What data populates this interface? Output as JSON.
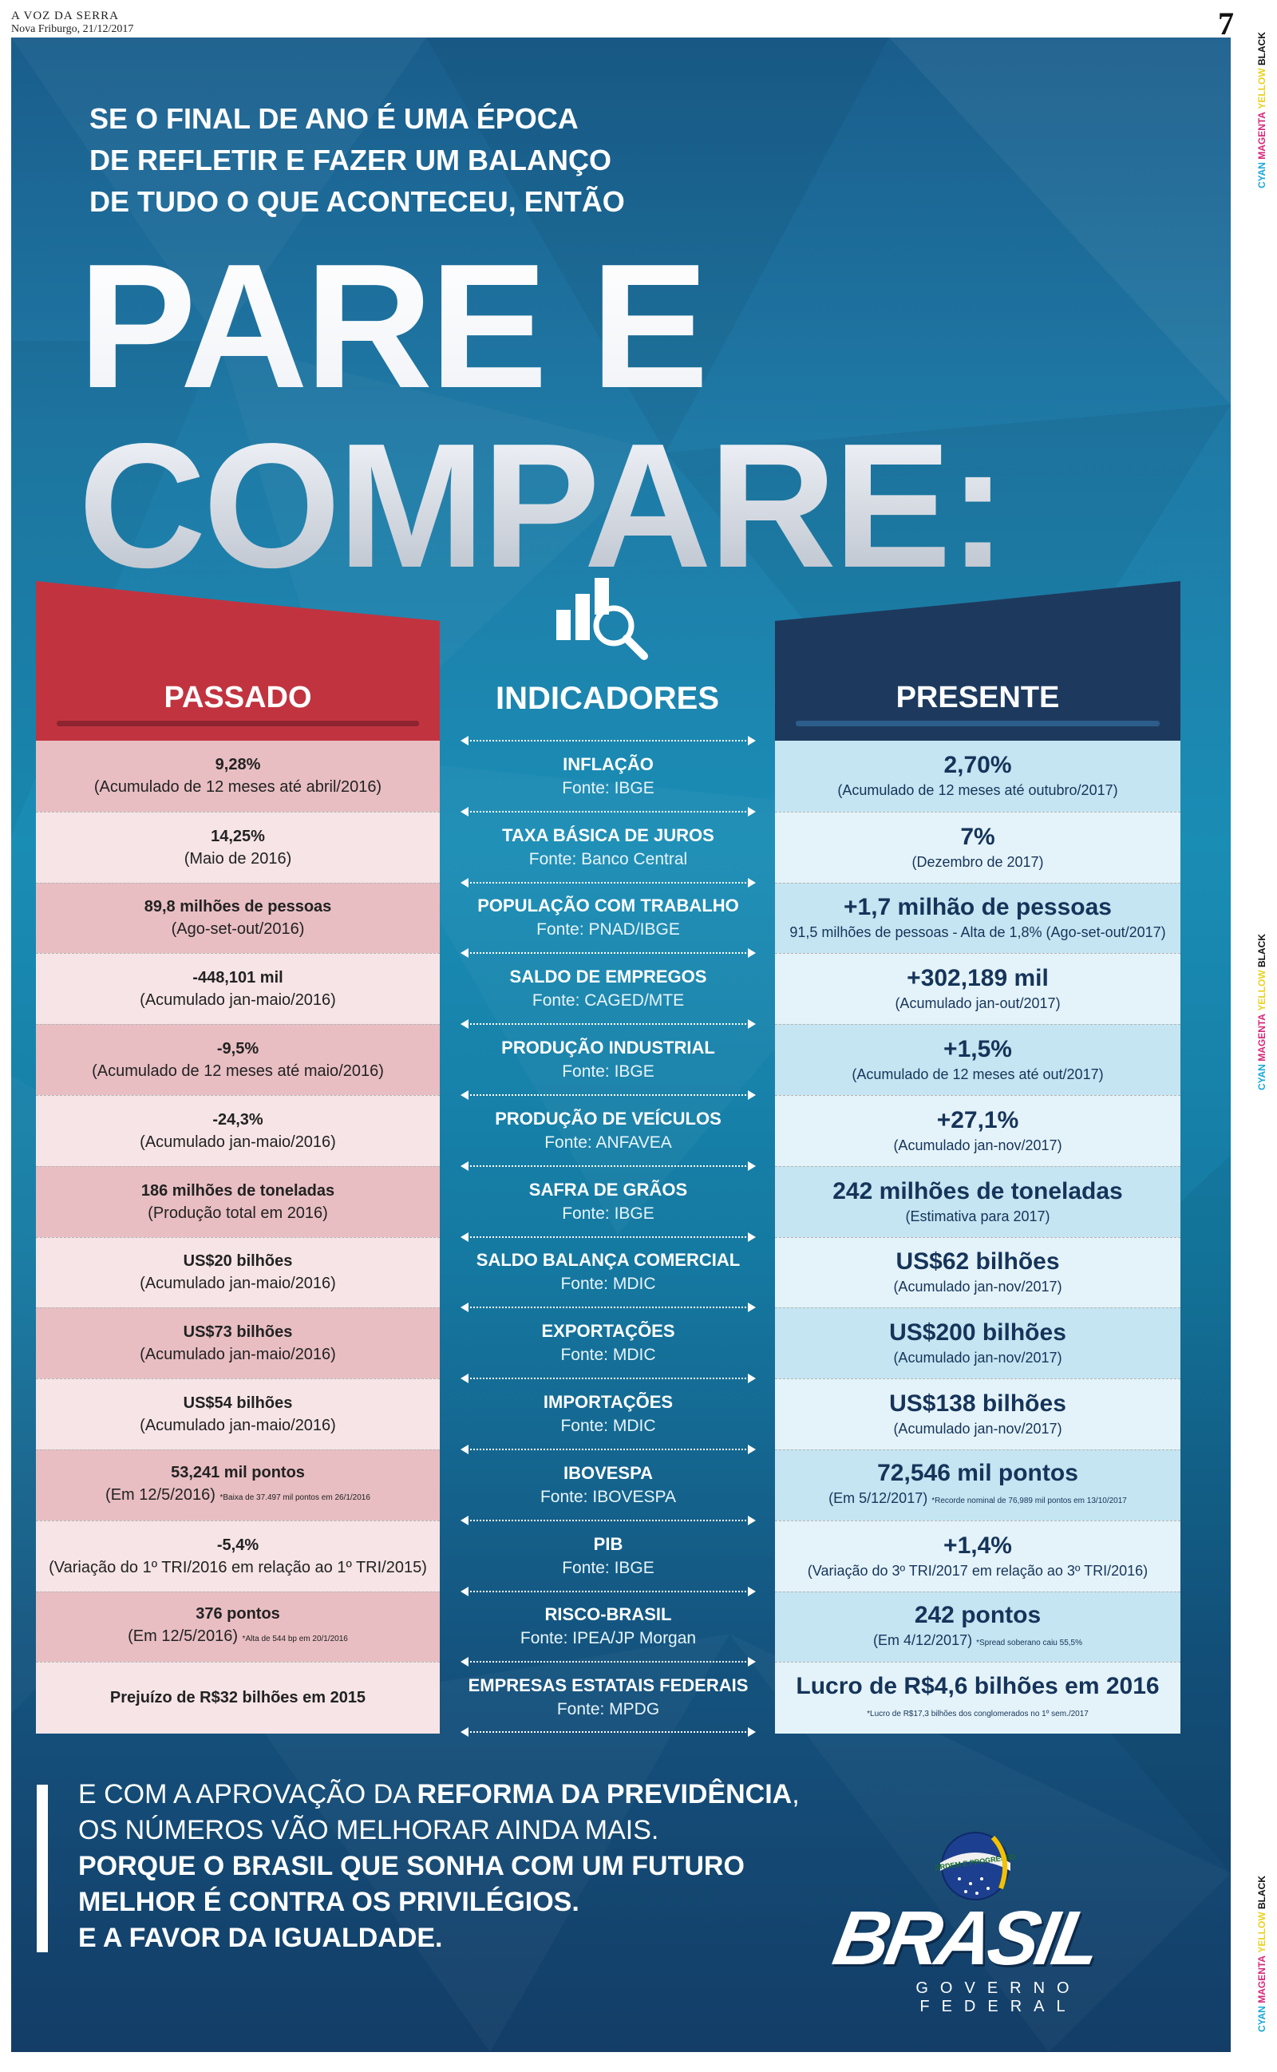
{
  "publication": {
    "name": "A VOZ DA SERRA",
    "date_line": "Nova Friburgo, 21/12/2017",
    "page_number": "7"
  },
  "print_marks": {
    "cyan": "CYAN",
    "magenta": "MAGENTA",
    "yellow": "YELLOW",
    "black": "BLACK"
  },
  "intro": [
    "SE O FINAL DE ANO É UMA ÉPOCA",
    "DE REFLETIR E FAZER UM BALANÇO",
    "DE TUDO O QUE ACONTECEU, ENTÃO"
  ],
  "title": [
    "PARE E",
    "COMPARE:"
  ],
  "icon": "chart-magnifier-icon",
  "columns": {
    "past": "PASSADO",
    "indicators": "INDICADORES",
    "present": "PRESENTE"
  },
  "colors": {
    "past": "#c1343f",
    "present": "#1d3a5e",
    "past_row": "#e8bec2",
    "present_row": "#c4e5f1"
  },
  "rows": [
    {
      "past_value": "9,28%",
      "past_note": "(Acumulado de 12 meses até abril/2016)",
      "indicator": "INFLAÇÃO",
      "source": "Fonte: IBGE",
      "present_value": "2,70%",
      "present_note": "(Acumulado de 12 meses até outubro/2017)"
    },
    {
      "past_value": "14,25%",
      "past_note": "(Maio de 2016)",
      "indicator": "TAXA BÁSICA DE JUROS",
      "source": "Fonte: Banco Central",
      "present_value": "7%",
      "present_note": "(Dezembro de 2017)"
    },
    {
      "past_value": "89,8 milhões de pessoas",
      "past_note": "(Ago-set-out/2016)",
      "indicator": "POPULAÇÃO COM TRABALHO",
      "source": "Fonte: PNAD/IBGE",
      "present_value": "+1,7 milhão de pessoas",
      "present_note": "91,5 milhões de pessoas - Alta de 1,8% (Ago-set-out/2017)"
    },
    {
      "past_value": "-448,101 mil",
      "past_note": "(Acumulado jan-maio/2016)",
      "indicator": "SALDO DE EMPREGOS",
      "source": "Fonte: CAGED/MTE",
      "present_value": "+302,189 mil",
      "present_note": "(Acumulado jan-out/2017)"
    },
    {
      "past_value": "-9,5%",
      "past_note": "(Acumulado de 12 meses até maio/2016)",
      "indicator": "PRODUÇÃO INDUSTRIAL",
      "source": "Fonte: IBGE",
      "present_value": "+1,5%",
      "present_note": "(Acumulado de 12 meses até out/2017)"
    },
    {
      "past_value": "-24,3%",
      "past_note": "(Acumulado jan-maio/2016)",
      "indicator": "PRODUÇÃO DE VEÍCULOS",
      "source": "Fonte: ANFAVEA",
      "present_value": "+27,1%",
      "present_note": "(Acumulado jan-nov/2017)"
    },
    {
      "past_value": "186 milhões de toneladas",
      "past_note": "(Produção total em 2016)",
      "indicator": "SAFRA DE GRÃOS",
      "source": "Fonte: IBGE",
      "present_value": "242 milhões de toneladas",
      "present_note": "(Estimativa para 2017)"
    },
    {
      "past_value": "US$20 bilhões",
      "past_note": "(Acumulado jan-maio/2016)",
      "indicator": "SALDO BALANÇA COMERCIAL",
      "source": "Fonte: MDIC",
      "present_value": "US$62 bilhões",
      "present_note": "(Acumulado jan-nov/2017)"
    },
    {
      "past_value": "US$73 bilhões",
      "past_note": "(Acumulado jan-maio/2016)",
      "indicator": "EXPORTAÇÕES",
      "source": "Fonte: MDIC",
      "present_value": "US$200 bilhões",
      "present_note": "(Acumulado jan-nov/2017)"
    },
    {
      "past_value": "US$54 bilhões",
      "past_note": "(Acumulado jan-maio/2016)",
      "indicator": "IMPORTAÇÕES",
      "source": "Fonte: MDIC",
      "present_value": "US$138 bilhões",
      "present_note": "(Acumulado jan-nov/2017)"
    },
    {
      "past_value": "53,241 mil pontos",
      "past_note": "(Em 12/5/2016)",
      "past_footnote": "*Baixa de 37.497 mil pontos em 26/1/2016",
      "indicator": "IBOVESPA",
      "source": "Fonte: IBOVESPA",
      "present_value": "72,546 mil pontos",
      "present_note": "(Em 5/12/2017)",
      "present_footnote": "*Recorde nominal de 76,989 mil pontos em 13/10/2017"
    },
    {
      "past_value": "-5,4%",
      "past_note": "(Variação do 1º TRI/2016 em relação ao 1º TRI/2015)",
      "indicator": "PIB",
      "source": "Fonte: IBGE",
      "present_value": "+1,4%",
      "present_note": "(Variação do 3º TRI/2017 em relação ao 3º TRI/2016)"
    },
    {
      "past_value": "376 pontos",
      "past_note": "(Em 12/5/2016)",
      "past_footnote": "*Alta de 544 bp em 20/1/2016",
      "indicator": "RISCO-BRASIL",
      "source": "Fonte: IPEA/JP Morgan",
      "present_value": "242 pontos",
      "present_note": "(Em 4/12/2017)",
      "present_footnote": "*Spread soberano caiu 55,5%"
    },
    {
      "past_value": "Prejuízo de R$32 bilhões em 2015",
      "past_note": "",
      "indicator": "EMPRESAS ESTATAIS FEDERAIS",
      "source": "Fonte: MPDG",
      "present_value": "Lucro de R$4,6 bilhões em 2016",
      "present_note": "",
      "present_footnote": "*Lucro de R$17,3 bilhões dos conglomerados no 1º sem./2017"
    }
  ],
  "footer": {
    "line1_prefix": "E COM A APROVAÇÃO DA ",
    "line1_bold": "REFORMA DA PREVIDÊNCIA",
    "line1_suffix": ",",
    "line2": "OS NÚMEROS VÃO MELHORAR AINDA MAIS.",
    "line3": "PORQUE O BRASIL QUE SONHA COM UM FUTURO",
    "line4": "MELHOR É CONTRA OS PRIVILÉGIOS.",
    "line5": "E A FAVOR DA IGUALDADE."
  },
  "logo": {
    "wordmark": "BRASIL",
    "subtitle": "GOVERNO FEDERAL",
    "motto": "ORDEM E PROGRESSO",
    "icon": "brazil-globe-icon"
  }
}
